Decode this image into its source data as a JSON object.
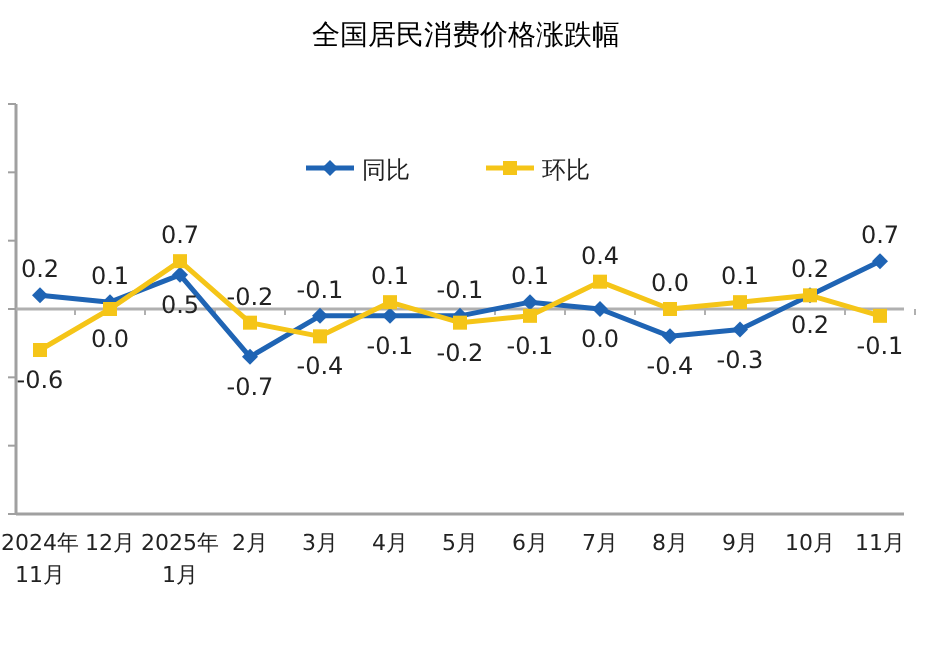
{
  "chart_data": {
    "type": "line",
    "title": "全国居民消费价格涨跌幅",
    "categories": [
      "2024年\n11月",
      "12月",
      "2025年\n1月",
      "2月",
      "3月",
      "4月",
      "5月",
      "6月",
      "7月",
      "8月",
      "9月",
      "10月",
      "11月"
    ],
    "series": [
      {
        "name": "同比",
        "color": "#1f64b4",
        "marker": "diamond",
        "values": [
          0.2,
          0.1,
          0.5,
          -0.7,
          -0.1,
          -0.1,
          -0.1,
          0.1,
          0.0,
          -0.4,
          -0.3,
          0.2,
          0.7
        ],
        "value_labels": [
          "0.2",
          "0.1",
          "0.5",
          "-0.7",
          "-0.1",
          "-0.1",
          "-0.1",
          "0.1",
          "0.0",
          "-0.4",
          "-0.3",
          "0.2",
          "0.7"
        ]
      },
      {
        "name": "环比",
        "color": "#f5c518",
        "marker": "square",
        "values": [
          -0.6,
          0.0,
          0.7,
          -0.2,
          -0.4,
          0.1,
          -0.2,
          -0.1,
          0.4,
          0.0,
          0.1,
          0.2,
          -0.1
        ],
        "value_labels": [
          "-0.6",
          "0.0",
          "0.7",
          "-0.2",
          "-0.4",
          "0.1",
          "-0.2",
          "-0.1",
          "0.4",
          "0.0",
          "0.1",
          "0.2",
          "-0.1"
        ]
      }
    ],
    "ylim": [
      -3,
      3
    ],
    "yticks": [
      {
        "value": -3,
        "label": null
      },
      {
        "value": -2,
        "label": null
      },
      {
        "value": -1,
        "label": null
      },
      {
        "value": 0,
        "label": null
      },
      {
        "value": 1,
        "label": null
      },
      {
        "value": 2,
        "label": null
      },
      {
        "value": 3,
        "label": null
      }
    ],
    "ref_lines": [
      {
        "axis": "y",
        "value": 0,
        "color": "#b0b0b0"
      }
    ],
    "legend": "top",
    "grid": false
  }
}
